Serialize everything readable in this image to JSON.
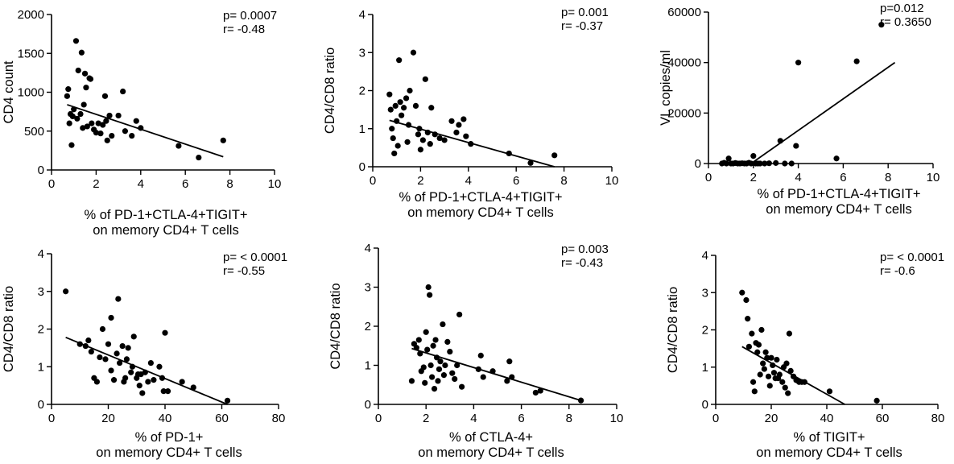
{
  "chart_data": [
    {
      "type": "scatter",
      "ylabel": "CD4 count",
      "xlabel_lines": [
        "% of PD-1+CTLA-4+TIGIT+",
        "on memory CD4+ T cells"
      ],
      "xlim": [
        0,
        10
      ],
      "ylim": [
        0,
        2000
      ],
      "xticks": [
        0,
        2,
        4,
        6,
        8,
        10
      ],
      "yticks": [
        0,
        500,
        1000,
        1500,
        2000
      ],
      "stats": [
        "p= 0.0007",
        "r= -0.48"
      ],
      "fit": [
        [
          0.7,
          840
        ],
        [
          7.7,
          170
        ]
      ],
      "points": [
        [
          0.7,
          950
        ],
        [
          0.75,
          1040
        ],
        [
          0.8,
          600
        ],
        [
          0.85,
          720
        ],
        [
          0.9,
          320
        ],
        [
          0.95,
          690
        ],
        [
          1.0,
          780
        ],
        [
          1.1,
          1660
        ],
        [
          1.15,
          660
        ],
        [
          1.2,
          1280
        ],
        [
          1.3,
          720
        ],
        [
          1.35,
          1510
        ],
        [
          1.4,
          540
        ],
        [
          1.45,
          840
        ],
        [
          1.5,
          1240
        ],
        [
          1.55,
          1060
        ],
        [
          1.6,
          560
        ],
        [
          1.7,
          1180
        ],
        [
          1.75,
          1170
        ],
        [
          1.8,
          600
        ],
        [
          1.9,
          520
        ],
        [
          2.0,
          480
        ],
        [
          2.1,
          600
        ],
        [
          2.2,
          470
        ],
        [
          2.3,
          580
        ],
        [
          2.4,
          950
        ],
        [
          2.45,
          630
        ],
        [
          2.5,
          380
        ],
        [
          2.6,
          700
        ],
        [
          2.7,
          440
        ],
        [
          3.0,
          700
        ],
        [
          3.2,
          1010
        ],
        [
          3.3,
          500
        ],
        [
          3.6,
          440
        ],
        [
          3.8,
          630
        ],
        [
          4.0,
          540
        ],
        [
          5.7,
          310
        ],
        [
          6.6,
          160
        ],
        [
          7.7,
          380
        ]
      ]
    },
    {
      "type": "scatter",
      "ylabel": "CD4/CD8 ratio",
      "xlabel_lines": [
        "% of PD-1+CTLA-4+TIGIT+",
        "on memory CD4+ T cells"
      ],
      "xlim": [
        0,
        10
      ],
      "ylim": [
        0,
        4
      ],
      "xticks": [
        0,
        2,
        4,
        6,
        8,
        10
      ],
      "yticks": [
        0,
        1,
        2,
        3,
        4
      ],
      "stats": [
        "p= 0.001",
        "r= -0.37"
      ],
      "fit": [
        [
          0.7,
          1.22
        ],
        [
          7.6,
          0.0
        ]
      ],
      "points": [
        [
          0.7,
          1.9
        ],
        [
          0.75,
          1.5
        ],
        [
          0.8,
          1.0
        ],
        [
          0.85,
          0.75
        ],
        [
          0.9,
          0.35
        ],
        [
          0.95,
          1.6
        ],
        [
          1.0,
          1.2
        ],
        [
          1.05,
          0.55
        ],
        [
          1.1,
          2.8
        ],
        [
          1.15,
          1.7
        ],
        [
          1.2,
          1.35
        ],
        [
          1.3,
          1.55
        ],
        [
          1.4,
          1.8
        ],
        [
          1.45,
          0.65
        ],
        [
          1.5,
          1.1
        ],
        [
          1.55,
          2.0
        ],
        [
          1.7,
          3.0
        ],
        [
          1.8,
          1.6
        ],
        [
          1.9,
          0.85
        ],
        [
          1.95,
          1.0
        ],
        [
          2.0,
          0.45
        ],
        [
          2.1,
          0.7
        ],
        [
          2.2,
          2.3
        ],
        [
          2.3,
          0.9
        ],
        [
          2.4,
          0.6
        ],
        [
          2.45,
          1.55
        ],
        [
          2.6,
          0.85
        ],
        [
          2.8,
          0.75
        ],
        [
          3.0,
          0.7
        ],
        [
          3.3,
          1.2
        ],
        [
          3.5,
          0.9
        ],
        [
          3.6,
          1.1
        ],
        [
          3.8,
          1.25
        ],
        [
          3.9,
          0.8
        ],
        [
          4.1,
          0.6
        ],
        [
          5.7,
          0.35
        ],
        [
          6.6,
          0.1
        ],
        [
          7.6,
          0.3
        ]
      ]
    },
    {
      "type": "scatter",
      "ylabel": "VL copies/ml",
      "xlabel_lines": [
        "% of PD-1+CTLA-4+TIGIT+",
        "on memory CD4+ T cells"
      ],
      "xlim": [
        0,
        10
      ],
      "ylim": [
        0,
        60000
      ],
      "xticks": [
        0,
        2,
        4,
        6,
        8,
        10
      ],
      "yticks": [
        0,
        20000,
        40000,
        60000
      ],
      "stats": [
        "p=0.012",
        "r= 0.3650"
      ],
      "fit": [
        [
          1.9,
          0
        ],
        [
          8.3,
          40000
        ]
      ],
      "points": [
        [
          0.6,
          0
        ],
        [
          0.7,
          300
        ],
        [
          0.8,
          0
        ],
        [
          0.9,
          2000
        ],
        [
          1.0,
          0
        ],
        [
          1.1,
          0
        ],
        [
          1.2,
          200
        ],
        [
          1.3,
          0
        ],
        [
          1.4,
          0
        ],
        [
          1.5,
          100
        ],
        [
          1.6,
          0
        ],
        [
          1.7,
          0
        ],
        [
          1.8,
          300
        ],
        [
          1.9,
          0
        ],
        [
          2.0,
          3000
        ],
        [
          2.1,
          0
        ],
        [
          2.2,
          0
        ],
        [
          2.3,
          0
        ],
        [
          2.5,
          0
        ],
        [
          2.7,
          100
        ],
        [
          3.0,
          200
        ],
        [
          3.2,
          9000
        ],
        [
          3.4,
          0
        ],
        [
          3.7,
          0
        ],
        [
          3.9,
          7000
        ],
        [
          4.0,
          40000
        ],
        [
          5.7,
          2000
        ],
        [
          6.6,
          40500
        ],
        [
          7.7,
          55000
        ]
      ]
    },
    {
      "type": "scatter",
      "ylabel": "CD4/CD8 ratio",
      "xlabel_lines": [
        "% of PD-1+",
        "on memory CD4+ T cells"
      ],
      "xlim": [
        0,
        80
      ],
      "ylim": [
        0,
        4
      ],
      "xticks": [
        0,
        20,
        40,
        60,
        80
      ],
      "yticks": [
        0,
        1,
        2,
        3,
        4
      ],
      "stats": [
        "p= < 0.0001",
        "r= -0.55"
      ],
      "fit": [
        [
          5,
          1.78
        ],
        [
          62,
          0.0
        ]
      ],
      "points": [
        [
          5,
          3.0
        ],
        [
          10,
          1.6
        ],
        [
          12,
          1.55
        ],
        [
          13,
          1.7
        ],
        [
          14,
          1.4
        ],
        [
          15,
          0.7
        ],
        [
          16,
          0.6
        ],
        [
          17,
          1.25
        ],
        [
          18,
          2.0
        ],
        [
          19,
          1.2
        ],
        [
          20,
          1.6
        ],
        [
          21,
          2.3
        ],
        [
          21,
          0.9
        ],
        [
          22,
          0.65
        ],
        [
          23,
          1.35
        ],
        [
          23.5,
          2.8
        ],
        [
          24,
          1.1
        ],
        [
          25,
          1.55
        ],
        [
          25.5,
          0.6
        ],
        [
          26,
          0.7
        ],
        [
          26.5,
          1.2
        ],
        [
          27,
          1.5
        ],
        [
          28,
          0.85
        ],
        [
          28.5,
          1.0
        ],
        [
          29,
          1.8
        ],
        [
          30,
          0.7
        ],
        [
          30.5,
          0.8
        ],
        [
          31,
          0.5
        ],
        [
          31.5,
          0.8
        ],
        [
          32,
          0.3
        ],
        [
          33,
          0.85
        ],
        [
          34,
          0.6
        ],
        [
          35,
          1.1
        ],
        [
          36,
          0.65
        ],
        [
          38,
          1.0
        ],
        [
          39,
          0.7
        ],
        [
          39.5,
          0.35
        ],
        [
          40,
          1.9
        ],
        [
          41,
          0.35
        ],
        [
          46,
          0.6
        ],
        [
          50,
          0.45
        ],
        [
          62,
          0.1
        ]
      ]
    },
    {
      "type": "scatter",
      "ylabel": "CD4/CD8 ratio",
      "xlabel_lines": [
        "% of CTLA-4+",
        "on memory CD4+ T cells"
      ],
      "xlim": [
        0,
        10
      ],
      "ylim": [
        0,
        4
      ],
      "xticks": [
        0,
        2,
        4,
        6,
        8,
        10
      ],
      "yticks": [
        0,
        1,
        2,
        3,
        4
      ],
      "stats": [
        "p= 0.003",
        "r= -0.43"
      ],
      "fit": [
        [
          1.4,
          1.43
        ],
        [
          8.5,
          0.1
        ]
      ],
      "points": [
        [
          1.4,
          0.6
        ],
        [
          1.5,
          1.55
        ],
        [
          1.6,
          1.45
        ],
        [
          1.7,
          1.65
        ],
        [
          1.75,
          1.3
        ],
        [
          1.8,
          0.85
        ],
        [
          1.9,
          0.95
        ],
        [
          1.95,
          0.55
        ],
        [
          2.0,
          1.85
        ],
        [
          2.05,
          1.4
        ],
        [
          2.1,
          3.0
        ],
        [
          2.15,
          2.8
        ],
        [
          2.2,
          1.0
        ],
        [
          2.25,
          0.7
        ],
        [
          2.3,
          1.5
        ],
        [
          2.35,
          0.4
        ],
        [
          2.4,
          1.65
        ],
        [
          2.45,
          1.2
        ],
        [
          2.5,
          0.6
        ],
        [
          2.55,
          0.9
        ],
        [
          2.6,
          1.1
        ],
        [
          2.7,
          2.05
        ],
        [
          2.75,
          0.75
        ],
        [
          2.8,
          1.0
        ],
        [
          2.9,
          1.6
        ],
        [
          3.0,
          1.35
        ],
        [
          3.1,
          0.8
        ],
        [
          3.2,
          0.65
        ],
        [
          3.3,
          1.0
        ],
        [
          3.4,
          2.3
        ],
        [
          3.5,
          0.45
        ],
        [
          4.2,
          0.9
        ],
        [
          4.3,
          1.25
        ],
        [
          4.4,
          0.7
        ],
        [
          4.8,
          0.85
        ],
        [
          5.4,
          0.6
        ],
        [
          5.5,
          1.1
        ],
        [
          5.6,
          0.7
        ],
        [
          6.6,
          0.3
        ],
        [
          6.8,
          0.35
        ],
        [
          8.5,
          0.1
        ]
      ]
    },
    {
      "type": "scatter",
      "ylabel": "CD4/CD8 ratio",
      "xlabel_lines": [
        "% of TIGIT+",
        "on memory CD4+ T cells"
      ],
      "xlim": [
        0,
        80
      ],
      "ylim": [
        0,
        4
      ],
      "xticks": [
        0,
        20,
        40,
        60,
        80
      ],
      "yticks": [
        0,
        1,
        2,
        3,
        4
      ],
      "stats": [
        "p= < 0.0001",
        "r= -0.6"
      ],
      "fit": [
        [
          9.5,
          1.55
        ],
        [
          46.5,
          0.0
        ]
      ],
      "points": [
        [
          9.5,
          3.0
        ],
        [
          11,
          2.8
        ],
        [
          11.5,
          2.3
        ],
        [
          12,
          1.55
        ],
        [
          13,
          1.9
        ],
        [
          13.5,
          0.6
        ],
        [
          14,
          0.35
        ],
        [
          14.5,
          1.65
        ],
        [
          15,
          1.4
        ],
        [
          15.5,
          1.6
        ],
        [
          16,
          0.8
        ],
        [
          16.5,
          2.0
        ],
        [
          17,
          1.1
        ],
        [
          17.5,
          0.95
        ],
        [
          18,
          1.4
        ],
        [
          18.5,
          1.25
        ],
        [
          19,
          0.75
        ],
        [
          19.5,
          0.5
        ],
        [
          20,
          1.25
        ],
        [
          20.5,
          1.05
        ],
        [
          21,
          0.85
        ],
        [
          21.5,
          0.7
        ],
        [
          22,
          1.2
        ],
        [
          22.5,
          0.7
        ],
        [
          23,
          0.8
        ],
        [
          24,
          0.6
        ],
        [
          24.5,
          1.0
        ],
        [
          25,
          0.45
        ],
        [
          25.5,
          1.1
        ],
        [
          26,
          0.3
        ],
        [
          26.5,
          1.9
        ],
        [
          27,
          0.9
        ],
        [
          28,
          0.75
        ],
        [
          29,
          0.65
        ],
        [
          30,
          0.6
        ],
        [
          31,
          0.6
        ],
        [
          32,
          0.6
        ],
        [
          41,
          0.35
        ],
        [
          58,
          0.1
        ]
      ]
    }
  ]
}
